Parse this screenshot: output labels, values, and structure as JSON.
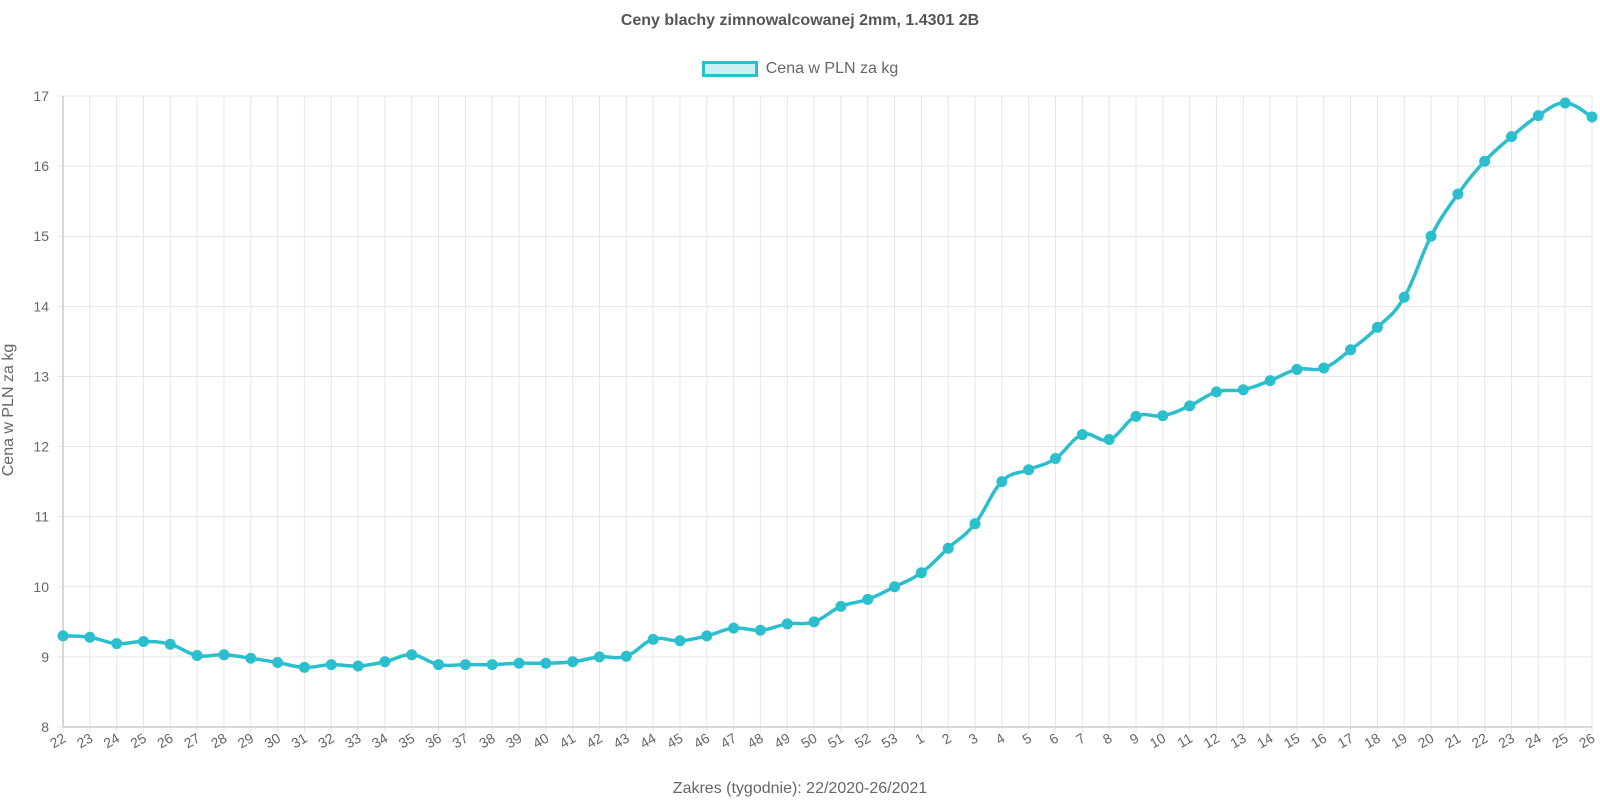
{
  "chart_data": {
    "type": "line",
    "title": "Ceny blachy zimnowalcowanej 2mm, 1.4301 2B",
    "xlabel": "Zakres (tygodnie): 22/2020-26/2021",
    "ylabel": "Cena w PLN za kg",
    "ylim": [
      8,
      17
    ],
    "yticks": [
      "8",
      "9",
      "10",
      "11",
      "12",
      "13",
      "14",
      "15",
      "16",
      "17"
    ],
    "grid": true,
    "legend_position": "top-center",
    "categories": [
      "22",
      "23",
      "24",
      "25",
      "26",
      "27",
      "28",
      "29",
      "30",
      "31",
      "32",
      "33",
      "34",
      "35",
      "36",
      "37",
      "38",
      "39",
      "40",
      "41",
      "42",
      "43",
      "44",
      "45",
      "46",
      "47",
      "48",
      "49",
      "50",
      "51",
      "52",
      "53",
      "1",
      "2",
      "3",
      "4",
      "5",
      "6",
      "7",
      "8",
      "9",
      "10",
      "11",
      "12",
      "13",
      "14",
      "15",
      "16",
      "17",
      "18",
      "19",
      "20",
      "21",
      "22",
      "23",
      "24",
      "25",
      "26"
    ],
    "series": [
      {
        "name": "Cena w PLN za kg",
        "color": "#2bbfce",
        "values": [
          9.3,
          9.28,
          9.19,
          9.22,
          9.18,
          9.02,
          9.03,
          8.98,
          8.92,
          8.85,
          8.89,
          8.87,
          8.93,
          9.03,
          8.89,
          8.89,
          8.89,
          8.91,
          8.91,
          8.93,
          9.0,
          9.01,
          9.25,
          9.23,
          9.3,
          9.41,
          9.38,
          9.47,
          9.5,
          9.72,
          9.82,
          10.0,
          10.2,
          10.55,
          10.9,
          11.5,
          11.67,
          11.83,
          12.17,
          12.1,
          12.43,
          12.44,
          12.58,
          12.78,
          12.81,
          12.94,
          13.1,
          13.12,
          13.38,
          13.7,
          14.13,
          15.0,
          15.6,
          16.07,
          16.42,
          16.72,
          16.9,
          16.7
        ]
      }
    ]
  }
}
